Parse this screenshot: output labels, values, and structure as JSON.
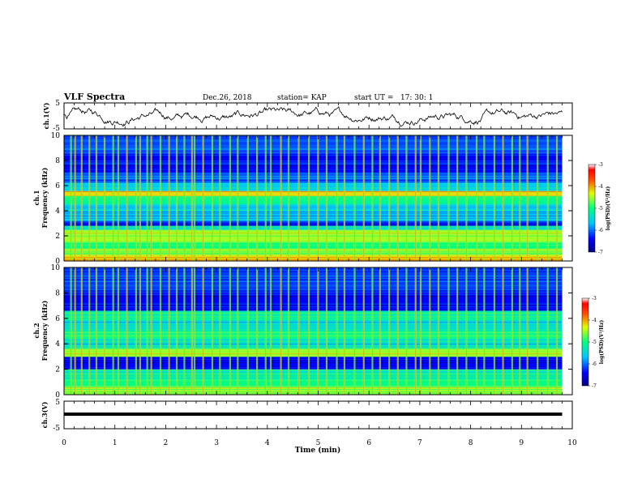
{
  "chart_data": {
    "type": "heatmap",
    "title": "VLF Spectra",
    "date": "Dec.26, 2018",
    "station": "station= KAP",
    "start_ut": "start UT =   17: 30: 1",
    "xlabel": "Time  (min)",
    "xlim": [
      0,
      10
    ],
    "xticks": [
      "0",
      "1",
      "2",
      "3",
      "4",
      "5",
      "6",
      "7",
      "8",
      "9",
      "10"
    ],
    "data_end_min": 9.8,
    "panels": [
      {
        "kind": "waveform",
        "ylabel": "ch.1(V)",
        "ylim": [
          -5,
          5
        ],
        "yticks": [
          "5",
          "-5"
        ],
        "baseline": 0
      },
      {
        "kind": "spectrogram",
        "ylabel_line1": "ch.1",
        "ylabel_line2": "Frequency  (kHz)",
        "ylim": [
          0,
          10
        ],
        "yticks": [
          "0",
          "2",
          "4",
          "6",
          "8",
          "10"
        ],
        "colorbar_label": "log(PSD)(V²/Hz)",
        "colorbar_range": [
          -7,
          -3
        ],
        "colorbar_ticks": [
          "-3",
          "-4",
          "-5",
          "-6",
          "-7"
        ],
        "bands_khz": [
          {
            "from": 0.0,
            "to": 0.5,
            "level": -4.2
          },
          {
            "from": 0.5,
            "to": 1.0,
            "level": -4.6
          },
          {
            "from": 1.0,
            "to": 1.5,
            "level": -5.0
          },
          {
            "from": 1.5,
            "to": 2.5,
            "level": -4.5
          },
          {
            "from": 2.5,
            "to": 2.8,
            "level": -5.4
          },
          {
            "from": 2.8,
            "to": 3.2,
            "level": -6.3
          },
          {
            "from": 3.2,
            "to": 4.5,
            "level": -5.6
          },
          {
            "from": 4.5,
            "to": 5.2,
            "level": -5.1
          },
          {
            "from": 5.2,
            "to": 5.6,
            "level": -4.2
          },
          {
            "from": 5.6,
            "to": 6.2,
            "level": -5.6
          },
          {
            "from": 6.2,
            "to": 7.0,
            "level": -6.1
          },
          {
            "from": 7.0,
            "to": 8.6,
            "level": -6.4
          },
          {
            "from": 8.6,
            "to": 10.0,
            "level": -6.1
          }
        ]
      },
      {
        "kind": "spectrogram",
        "ylabel_line1": "ch.2",
        "ylabel_line2": "Frequency  (kHz)",
        "ylim": [
          0,
          10
        ],
        "yticks": [
          "0",
          "2",
          "4",
          "6",
          "8",
          "10"
        ],
        "colorbar_label": "log(PSD)(V²/Hz)",
        "colorbar_range": [
          -7,
          -3
        ],
        "colorbar_ticks": [
          "-3",
          "-4",
          "-5",
          "-6",
          "-7"
        ],
        "bands_khz": [
          {
            "from": 0.0,
            "to": 0.6,
            "level": -4.5
          },
          {
            "from": 0.6,
            "to": 1.2,
            "level": -5.0
          },
          {
            "from": 1.2,
            "to": 2.0,
            "level": -5.3
          },
          {
            "from": 2.0,
            "to": 3.0,
            "level": -6.4
          },
          {
            "from": 3.0,
            "to": 3.6,
            "level": -4.5
          },
          {
            "from": 3.6,
            "to": 4.4,
            "level": -5.4
          },
          {
            "from": 4.4,
            "to": 5.0,
            "level": -5.1
          },
          {
            "from": 5.0,
            "to": 5.8,
            "level": -5.5
          },
          {
            "from": 5.8,
            "to": 6.6,
            "level": -5.2
          },
          {
            "from": 6.6,
            "to": 8.0,
            "level": -6.4
          },
          {
            "from": 8.0,
            "to": 10.0,
            "level": -6.2
          }
        ]
      },
      {
        "kind": "waveform",
        "ylabel": "ch.3(V)",
        "ylim": [
          -5,
          5
        ],
        "yticks": [
          "5",
          "-5"
        ],
        "baseline": 0
      }
    ],
    "impulses_min": [
      0.12,
      0.2,
      0.33,
      0.48,
      0.62,
      0.78,
      0.95,
      1.05,
      1.22,
      1.4,
      1.48,
      1.62,
      1.7,
      1.88,
      2.05,
      2.2,
      2.35,
      2.5,
      2.55,
      2.72,
      2.9,
      3.05,
      3.25,
      3.4,
      3.6,
      3.78,
      3.95,
      4.05,
      4.25,
      4.4,
      4.6,
      4.8,
      4.98,
      5.15,
      5.35,
      5.5,
      5.7,
      5.88,
      6.05,
      6.2,
      6.38,
      6.55,
      6.72,
      6.9,
      7.0,
      7.18,
      7.35,
      7.55,
      7.72,
      7.9,
      8.1,
      8.25,
      8.45,
      8.62,
      8.8,
      8.95,
      9.1,
      9.3,
      9.5,
      9.68
    ]
  }
}
